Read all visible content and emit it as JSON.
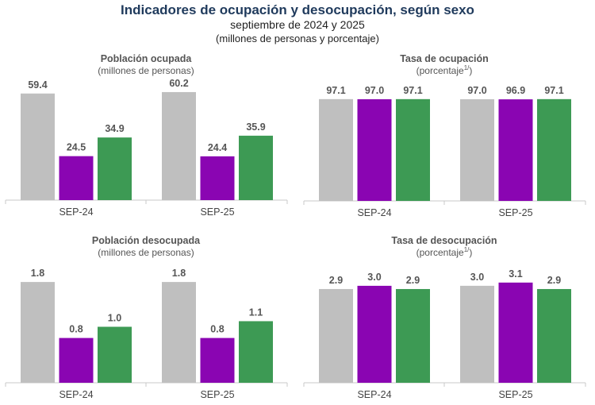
{
  "header": {
    "title": "Indicadores de ocupación y desocupación, según sexo",
    "subtitle": "septiembre de 2024 y 2025",
    "units": "(millones de personas y porcentaje)"
  },
  "colors": {
    "total": "#bfbfbf",
    "mujeres": "#8a05b2",
    "hombres": "#3d9a54"
  },
  "chart_data": [
    {
      "type": "bar",
      "title": "Población ocupada",
      "subtitle": "(millones de personas)",
      "categories": [
        "SEP-24",
        "SEP-25"
      ],
      "series": [
        {
          "values": [
            59.4,
            60.2
          ]
        },
        {
          "values": [
            24.5,
            24.4
          ]
        },
        {
          "values": [
            34.9,
            35.9
          ]
        }
      ]
    },
    {
      "type": "bar",
      "title": "Tasa de ocupación",
      "subtitle": "(porcentaje",
      "subtitle_sup": "1/",
      "subtitle_end": ")",
      "categories": [
        "SEP-24",
        "SEP-25"
      ],
      "series": [
        {
          "values": [
            97.1,
            97.0
          ]
        },
        {
          "values": [
            97.0,
            96.9
          ]
        },
        {
          "values": [
            97.1,
            97.1
          ]
        }
      ]
    },
    {
      "type": "bar",
      "title": "Población desocupada",
      "subtitle": "(millones de personas)",
      "categories": [
        "SEP-24",
        "SEP-25"
      ],
      "series": [
        {
          "values": [
            1.8,
            1.8
          ]
        },
        {
          "values": [
            0.8,
            0.8
          ]
        },
        {
          "values": [
            1.0,
            1.1
          ]
        }
      ]
    },
    {
      "type": "bar",
      "title": "Tasa de desocupación",
      "subtitle": "(porcentaje",
      "subtitle_sup": "1/",
      "subtitle_end": ")",
      "categories": [
        "SEP-24",
        "SEP-25"
      ],
      "series": [
        {
          "values": [
            2.9,
            3.0
          ]
        },
        {
          "values": [
            3.0,
            3.1
          ]
        },
        {
          "values": [
            2.9,
            2.9
          ]
        }
      ]
    }
  ]
}
